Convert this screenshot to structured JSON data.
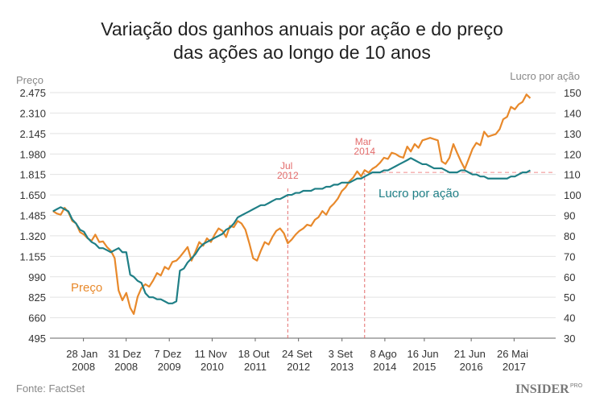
{
  "chart_data": {
    "type": "line",
    "title": [
      "Variação dos ganhos anuais por ação e do preço",
      "das ações ao longo de 10 anos"
    ],
    "ylabel": "Preço",
    "y2label": "Lucro por ação",
    "xlim": [
      "2007-05-08",
      "2018-04-20"
    ],
    "xticks": [
      {
        "value": "2008-01-28",
        "label": "28 Jan 2008"
      },
      {
        "value": "2008-12-31",
        "label": "31 Dez 2008"
      },
      {
        "value": "2009-12-07",
        "label": "7 Dez 2009"
      },
      {
        "value": "2010-11-11",
        "label": "11 Nov 2010"
      },
      {
        "value": "2011-10-18",
        "label": "18 Out 2011"
      },
      {
        "value": "2012-09-24",
        "label": "24 Set 2012"
      },
      {
        "value": "2013-09-03",
        "label": "3 Set 2013"
      },
      {
        "value": "2014-08-08",
        "label": "8 Ago 2014"
      },
      {
        "value": "2015-06-16",
        "label": "16 Jun 2015"
      },
      {
        "value": "2016-06-21",
        "label": "21 Jun 2016"
      },
      {
        "value": "2017-05-26",
        "label": "26 Mai 2017"
      }
    ],
    "ylim": [
      495,
      2475
    ],
    "yticks": [
      495,
      660,
      825,
      990,
      {
        "value": 1155,
        "label": "1.155"
      },
      {
        "value": 1320,
        "label": "1.320"
      },
      {
        "value": 1485,
        "label": "1.485"
      },
      {
        "value": 1650,
        "label": "1.650"
      },
      {
        "value": 1815,
        "label": "1.815"
      },
      {
        "value": 1980,
        "label": "1.980"
      },
      {
        "value": 2145,
        "label": "2.145"
      },
      {
        "value": 2310,
        "label": "2.310"
      },
      {
        "value": 2475,
        "label": "2.475"
      }
    ],
    "y2lim": [
      30,
      150
    ],
    "y2ticks": [
      30,
      40,
      50,
      60,
      70,
      80,
      90,
      100,
      110,
      120,
      130,
      140,
      150
    ],
    "grid": true,
    "x": [
      "2007-06",
      "2007-07",
      "2007-08",
      "2007-09",
      "2007-10",
      "2007-11",
      "2007-12",
      "2008-01",
      "2008-02",
      "2008-03",
      "2008-04",
      "2008-05",
      "2008-06",
      "2008-07",
      "2008-08",
      "2008-09",
      "2008-10",
      "2008-11",
      "2008-12",
      "2009-01",
      "2009-02",
      "2009-03",
      "2009-04",
      "2009-05",
      "2009-06",
      "2009-07",
      "2009-08",
      "2009-09",
      "2009-10",
      "2009-11",
      "2009-12",
      "2010-01",
      "2010-02",
      "2010-03",
      "2010-04",
      "2010-05",
      "2010-06",
      "2010-07",
      "2010-08",
      "2010-09",
      "2010-10",
      "2010-11",
      "2010-12",
      "2011-01",
      "2011-02",
      "2011-03",
      "2011-04",
      "2011-05",
      "2011-06",
      "2011-07",
      "2011-08",
      "2011-09",
      "2011-10",
      "2011-11",
      "2011-12",
      "2012-01",
      "2012-02",
      "2012-03",
      "2012-04",
      "2012-05",
      "2012-06",
      "2012-07",
      "2012-08",
      "2012-09",
      "2012-10",
      "2012-11",
      "2012-12",
      "2013-01",
      "2013-02",
      "2013-03",
      "2013-04",
      "2013-05",
      "2013-06",
      "2013-07",
      "2013-08",
      "2013-09",
      "2013-10",
      "2013-11",
      "2013-12",
      "2014-01",
      "2014-02",
      "2014-03",
      "2014-04",
      "2014-05",
      "2014-06",
      "2014-07",
      "2014-08",
      "2014-09",
      "2014-10",
      "2014-11",
      "2014-12",
      "2015-01",
      "2015-02",
      "2015-03",
      "2015-04",
      "2015-05",
      "2015-06",
      "2015-07",
      "2015-08",
      "2015-09",
      "2015-10",
      "2015-11",
      "2015-12",
      "2016-01",
      "2016-02",
      "2016-03",
      "2016-04",
      "2016-05",
      "2016-06",
      "2016-07",
      "2016-08",
      "2016-09",
      "2016-10",
      "2016-11",
      "2016-12",
      "2017-01",
      "2017-02",
      "2017-03",
      "2017-04",
      "2017-05",
      "2017-06",
      "2017-07",
      "2017-08",
      "2017-09",
      "2017-10"
    ],
    "series": [
      {
        "name": "Preço",
        "color": "#e8892b",
        "axis": "y",
        "values": [
          1520,
          1500,
          1490,
          1546,
          1510,
          1440,
          1420,
          1350,
          1330,
          1300,
          1280,
          1330,
          1270,
          1275,
          1230,
          1200,
          1140,
          880,
          800,
          860,
          740,
          690,
          830,
          900,
          930,
          910,
          960,
          1020,
          1000,
          1070,
          1050,
          1110,
          1120,
          1150,
          1190,
          1230,
          1120,
          1190,
          1270,
          1240,
          1300,
          1270,
          1330,
          1380,
          1360,
          1310,
          1400,
          1390,
          1440,
          1420,
          1370,
          1260,
          1140,
          1120,
          1200,
          1270,
          1250,
          1310,
          1360,
          1380,
          1340,
          1260,
          1290,
          1330,
          1360,
          1380,
          1410,
          1400,
          1450,
          1470,
          1520,
          1490,
          1550,
          1580,
          1620,
          1680,
          1710,
          1760,
          1790,
          1840,
          1800,
          1850,
          1830,
          1860,
          1880,
          1910,
          1950,
          1940,
          1990,
          1980,
          1960,
          1950,
          2040,
          2000,
          2060,
          2030,
          2090,
          2100,
          2110,
          2100,
          2090,
          1920,
          1900,
          1950,
          2060,
          1990,
          1920,
          1860,
          1940,
          2020,
          2070,
          2050,
          2160,
          2120,
          2130,
          2140,
          2180,
          2260,
          2280,
          2360,
          2340,
          2380,
          2400,
          2460,
          2430
        ]
      },
      {
        "name": "Lucro por ação",
        "color": "#1f7f86",
        "axis": "y2",
        "values": [
          92,
          93,
          94,
          93,
          92,
          88,
          86,
          83,
          82,
          79,
          77,
          76,
          74,
          74,
          73,
          72,
          73,
          74,
          72,
          72,
          61,
          60,
          58,
          57,
          52,
          50,
          50,
          49,
          49,
          48,
          47,
          47,
          48,
          63,
          64,
          67,
          69,
          71,
          74,
          76,
          77,
          78,
          79,
          80,
          81,
          83,
          84,
          86,
          89,
          90,
          91,
          92,
          93,
          94,
          95,
          95,
          96,
          97,
          98,
          98,
          99,
          100,
          100,
          101,
          101,
          102,
          102,
          102,
          103,
          103,
          103,
          104,
          104,
          105,
          105,
          106,
          106,
          106,
          107,
          108,
          108,
          109,
          110,
          111,
          111,
          111,
          112,
          112,
          113,
          114,
          115,
          116,
          117,
          118,
          117,
          116,
          115,
          115,
          114,
          113,
          113,
          113,
          112,
          111,
          111,
          111,
          112,
          112,
          111,
          110,
          110,
          109,
          109,
          108,
          108,
          108,
          108,
          108,
          108,
          109,
          109,
          110,
          111,
          111,
          112
        ]
      }
    ],
    "annotations": [
      {
        "label": "Jul 2012",
        "x": "2012-07"
      },
      {
        "label": "Mar 2014",
        "x": "2014-03"
      }
    ],
    "reference_line": {
      "axis": "y2",
      "value": 111
    },
    "source": "Fonte: FactSet",
    "logo": "INSIDER",
    "logo_sup": "PRO"
  }
}
